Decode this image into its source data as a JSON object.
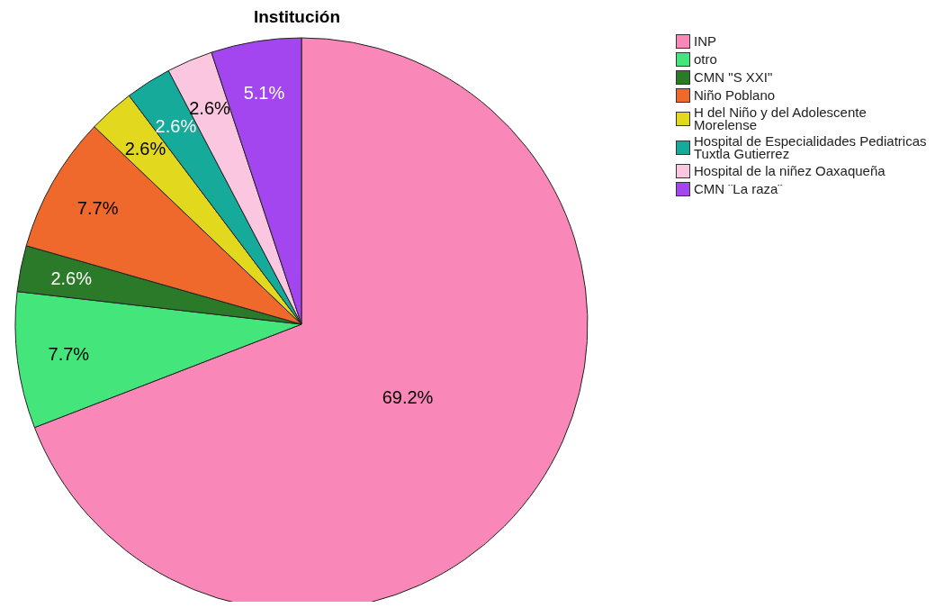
{
  "chart_data": {
    "type": "pie",
    "title": "Institución",
    "categories": [
      "INP",
      "otro",
      "CMN \"S XXI\"",
      "Niño Poblano",
      "H del Niño y del Adolescente Morelense",
      "Hospital de Especialidades Pediatricas Tuxtla Gutierrez",
      "Hospital de la niñez Oaxaqueña",
      "CMN ¨La raza¨"
    ],
    "values": [
      69.2,
      7.7,
      2.6,
      7.7,
      2.6,
      2.6,
      2.6,
      5.1
    ],
    "value_labels": [
      "69.2%",
      "7.7%",
      "2.6%",
      "7.7%",
      "2.6%",
      "2.6%",
      "2.6%",
      "5.1%"
    ],
    "colors": [
      "#f987b7",
      "#44e67c",
      "#2a7a2a",
      "#f0692c",
      "#e2d91e",
      "#15aa9a",
      "#fbc6e0",
      "#a446f0"
    ],
    "legend": "top right"
  }
}
